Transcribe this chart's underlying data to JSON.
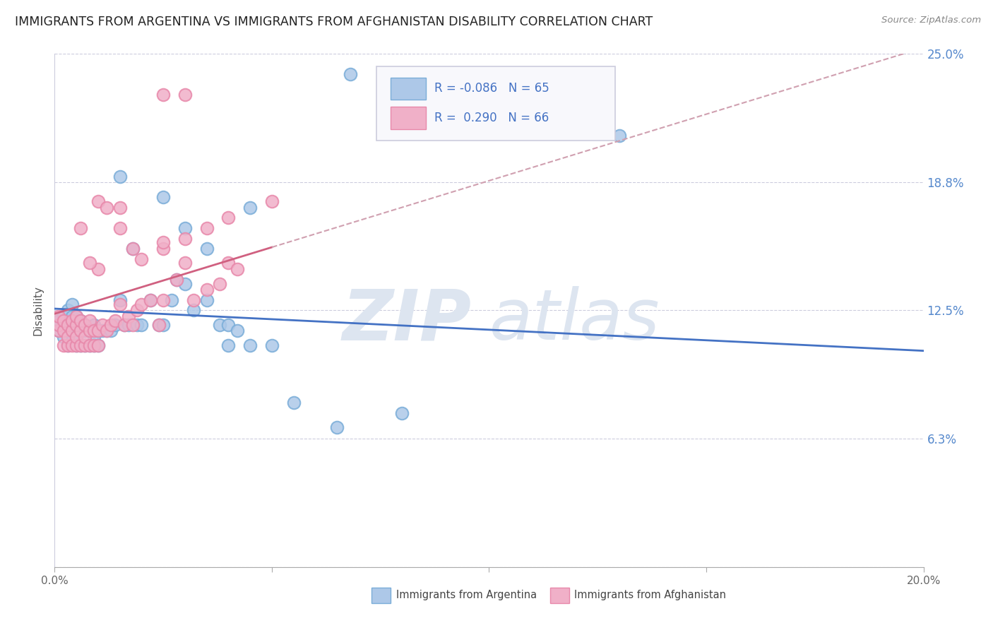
{
  "title": "IMMIGRANTS FROM ARGENTINA VS IMMIGRANTS FROM AFGHANISTAN DISABILITY CORRELATION CHART",
  "source": "Source: ZipAtlas.com",
  "ylabel": "Disability",
  "x_min": 0.0,
  "x_max": 0.2,
  "y_min": 0.0,
  "y_max": 0.25,
  "y_ticks": [
    0.0,
    0.0625,
    0.125,
    0.1875,
    0.25
  ],
  "y_tick_labels": [
    "",
    "6.3%",
    "12.5%",
    "18.8%",
    "25.0%"
  ],
  "x_ticks": [
    0.0,
    0.05,
    0.1,
    0.15,
    0.2
  ],
  "x_tick_labels": [
    "0.0%",
    "",
    "",
    "",
    "20.0%"
  ],
  "argentina_color": "#adc8e8",
  "afghanistan_color": "#f0b0c8",
  "argentina_edge_color": "#7aadd8",
  "afghanistan_edge_color": "#e888aa",
  "argentina_line_color": "#4472c4",
  "afghanistan_line_color": "#d06080",
  "afghanistan_dash_color": "#d0a0b0",
  "argentina_R": -0.086,
  "argentina_N": 65,
  "afghanistan_R": 0.29,
  "afghanistan_N": 66,
  "background_color": "#ffffff",
  "grid_color": "#ccccdd",
  "watermark_color": "#dde5f0",
  "legend_box_color": "#f8f8fc",
  "legend_border_color": "#ccccdd",
  "argentina_x": [
    0.001,
    0.001,
    0.002,
    0.002,
    0.002,
    0.003,
    0.003,
    0.003,
    0.003,
    0.004,
    0.004,
    0.004,
    0.004,
    0.004,
    0.005,
    0.005,
    0.005,
    0.005,
    0.006,
    0.006,
    0.006,
    0.007,
    0.007,
    0.007,
    0.008,
    0.008,
    0.009,
    0.009,
    0.009,
    0.01,
    0.01,
    0.011,
    0.012,
    0.013,
    0.014,
    0.015,
    0.016,
    0.017,
    0.018,
    0.019,
    0.02,
    0.022,
    0.024,
    0.025,
    0.027,
    0.028,
    0.03,
    0.032,
    0.035,
    0.038,
    0.04,
    0.042,
    0.045,
    0.015,
    0.025,
    0.03,
    0.035,
    0.04,
    0.045,
    0.05,
    0.055,
    0.065,
    0.068,
    0.08,
    0.13
  ],
  "argentina_y": [
    0.115,
    0.12,
    0.112,
    0.118,
    0.122,
    0.108,
    0.115,
    0.12,
    0.125,
    0.11,
    0.115,
    0.118,
    0.122,
    0.128,
    0.108,
    0.112,
    0.118,
    0.122,
    0.108,
    0.115,
    0.12,
    0.108,
    0.115,
    0.118,
    0.108,
    0.115,
    0.108,
    0.112,
    0.118,
    0.108,
    0.115,
    0.115,
    0.115,
    0.115,
    0.118,
    0.13,
    0.118,
    0.118,
    0.155,
    0.118,
    0.118,
    0.13,
    0.118,
    0.118,
    0.13,
    0.14,
    0.165,
    0.125,
    0.155,
    0.118,
    0.118,
    0.115,
    0.175,
    0.19,
    0.18,
    0.138,
    0.13,
    0.108,
    0.108,
    0.108,
    0.08,
    0.068,
    0.24,
    0.075,
    0.21
  ],
  "afghanistan_x": [
    0.001,
    0.001,
    0.001,
    0.002,
    0.002,
    0.002,
    0.003,
    0.003,
    0.003,
    0.004,
    0.004,
    0.004,
    0.005,
    0.005,
    0.005,
    0.005,
    0.006,
    0.006,
    0.006,
    0.007,
    0.007,
    0.007,
    0.008,
    0.008,
    0.008,
    0.009,
    0.009,
    0.01,
    0.01,
    0.011,
    0.012,
    0.013,
    0.014,
    0.015,
    0.016,
    0.017,
    0.018,
    0.019,
    0.02,
    0.022,
    0.024,
    0.025,
    0.028,
    0.03,
    0.032,
    0.035,
    0.038,
    0.04,
    0.042,
    0.025,
    0.03,
    0.035,
    0.04,
    0.05,
    0.015,
    0.02,
    0.025,
    0.01,
    0.008,
    0.006,
    0.01,
    0.012,
    0.015,
    0.018,
    0.025,
    0.03
  ],
  "afghanistan_y": [
    0.115,
    0.118,
    0.122,
    0.108,
    0.115,
    0.12,
    0.108,
    0.112,
    0.118,
    0.108,
    0.115,
    0.12,
    0.108,
    0.112,
    0.118,
    0.122,
    0.108,
    0.115,
    0.12,
    0.108,
    0.112,
    0.118,
    0.108,
    0.115,
    0.12,
    0.108,
    0.115,
    0.108,
    0.115,
    0.118,
    0.115,
    0.118,
    0.12,
    0.128,
    0.118,
    0.122,
    0.118,
    0.125,
    0.128,
    0.13,
    0.118,
    0.13,
    0.14,
    0.148,
    0.13,
    0.135,
    0.138,
    0.148,
    0.145,
    0.155,
    0.16,
    0.165,
    0.17,
    0.178,
    0.165,
    0.15,
    0.158,
    0.145,
    0.148,
    0.165,
    0.178,
    0.175,
    0.175,
    0.155,
    0.23,
    0.23
  ]
}
